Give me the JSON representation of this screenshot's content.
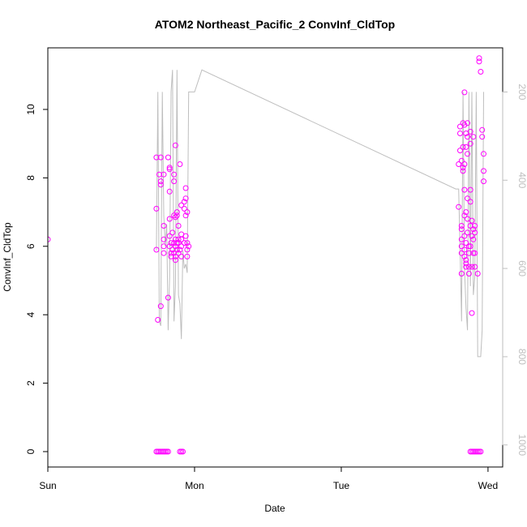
{
  "chart_data": {
    "type": "scatter",
    "title": "ATOM2 Northeast_Pacific_2 ConvInf_CldTop",
    "xlabel": "Date",
    "ylabel": "ConvInf_CldTop",
    "xlim": [
      0,
      3.1
    ],
    "ylim": [
      -0.45,
      11.8
    ],
    "x_ticks": [
      {
        "value": 0,
        "label": "Sun"
      },
      {
        "value": 1,
        "label": "Mon"
      },
      {
        "value": 2,
        "label": "Tue"
      },
      {
        "value": 3,
        "label": "Wed"
      }
    ],
    "y_ticks": [
      0,
      2,
      4,
      6,
      8,
      10
    ],
    "right_axis": {
      "range": [
        100,
        1050
      ],
      "ticks": [
        200,
        400,
        600,
        800,
        1000
      ],
      "color": "#bebebe"
    },
    "grid": false,
    "colors": {
      "points": "#ff00ff",
      "line": "#bebebe"
    },
    "series": [
      {
        "style": "points",
        "color": "#ff00ff",
        "points": [
          [
            0.0,
            6.2
          ],
          [
            0.74,
            8.6
          ],
          [
            0.74,
            7.1
          ],
          [
            0.74,
            5.9
          ],
          [
            0.75,
            3.85
          ],
          [
            0.76,
            8.1
          ],
          [
            0.77,
            8.6
          ],
          [
            0.77,
            7.8
          ],
          [
            0.77,
            7.9
          ],
          [
            0.77,
            4.25
          ],
          [
            0.79,
            6.6
          ],
          [
            0.79,
            6.2
          ],
          [
            0.79,
            5.8
          ],
          [
            0.79,
            6.0
          ],
          [
            0.79,
            8.1
          ],
          [
            0.82,
            4.5
          ],
          [
            0.82,
            8.6
          ],
          [
            0.83,
            8.25
          ],
          [
            0.83,
            8.3
          ],
          [
            0.83,
            7.6
          ],
          [
            0.83,
            6.8
          ],
          [
            0.83,
            6.3
          ],
          [
            0.83,
            6.0
          ],
          [
            0.84,
            5.8
          ],
          [
            0.84,
            5.7
          ],
          [
            0.84,
            6.1
          ],
          [
            0.85,
            5.9
          ],
          [
            0.85,
            6.4
          ],
          [
            0.86,
            6.1
          ],
          [
            0.86,
            5.8
          ],
          [
            0.86,
            6.9
          ],
          [
            0.86,
            7.9
          ],
          [
            0.86,
            8.1
          ],
          [
            0.87,
            6.85
          ],
          [
            0.87,
            6.0
          ],
          [
            0.87,
            6.2
          ],
          [
            0.87,
            5.7
          ],
          [
            0.87,
            5.6
          ],
          [
            0.87,
            8.95
          ],
          [
            0.88,
            7.0
          ],
          [
            0.88,
            6.1
          ],
          [
            0.88,
            5.9
          ],
          [
            0.88,
            6.9
          ],
          [
            0.89,
            6.6
          ],
          [
            0.89,
            5.8
          ],
          [
            0.89,
            6.2
          ],
          [
            0.89,
            6.1
          ],
          [
            0.9,
            5.9
          ],
          [
            0.9,
            8.4
          ],
          [
            0.91,
            7.2
          ],
          [
            0.91,
            6.2
          ],
          [
            0.91,
            6.0
          ],
          [
            0.91,
            6.35
          ],
          [
            0.91,
            5.7
          ],
          [
            0.93,
            7.3
          ],
          [
            0.93,
            6.1
          ],
          [
            0.93,
            7.1
          ],
          [
            0.94,
            7.7
          ],
          [
            0.94,
            6.9
          ],
          [
            0.94,
            7.4
          ],
          [
            0.94,
            6.3
          ],
          [
            0.95,
            5.9
          ],
          [
            0.95,
            5.7
          ],
          [
            0.95,
            7.0
          ],
          [
            0.95,
            6.1
          ],
          [
            0.96,
            6.0
          ],
          [
            0.74,
            0
          ],
          [
            0.75,
            0
          ],
          [
            0.76,
            0
          ],
          [
            0.77,
            0
          ],
          [
            0.78,
            0
          ],
          [
            0.79,
            0
          ],
          [
            0.8,
            0
          ],
          [
            0.81,
            0
          ],
          [
            0.82,
            0
          ],
          [
            0.9,
            0
          ],
          [
            0.91,
            0
          ],
          [
            0.92,
            0
          ],
          [
            2.8,
            7.15
          ],
          [
            2.8,
            8.4
          ],
          [
            2.81,
            8.8
          ],
          [
            2.81,
            9.5
          ],
          [
            2.81,
            9.3
          ],
          [
            2.82,
            5.2
          ],
          [
            2.82,
            5.8
          ],
          [
            2.82,
            6.0
          ],
          [
            2.82,
            6.6
          ],
          [
            2.82,
            6.5
          ],
          [
            2.82,
            6.2
          ],
          [
            2.82,
            8.5
          ],
          [
            2.83,
            8.2
          ],
          [
            2.83,
            8.3
          ],
          [
            2.83,
            8.9
          ],
          [
            2.83,
            9.6
          ],
          [
            2.84,
            10.5
          ],
          [
            2.84,
            9.55
          ],
          [
            2.84,
            8.4
          ],
          [
            2.84,
            7.65
          ],
          [
            2.84,
            6.9
          ],
          [
            2.84,
            6.3
          ],
          [
            2.84,
            5.9
          ],
          [
            2.84,
            5.7
          ],
          [
            2.85,
            5.5
          ],
          [
            2.85,
            5.4
          ],
          [
            2.85,
            5.6
          ],
          [
            2.85,
            6.1
          ],
          [
            2.85,
            7.0
          ],
          [
            2.85,
            8.9
          ],
          [
            2.85,
            9.3
          ],
          [
            2.86,
            9.6
          ],
          [
            2.86,
            9.2
          ],
          [
            2.86,
            8.7
          ],
          [
            2.86,
            7.4
          ],
          [
            2.86,
            6.8
          ],
          [
            2.86,
            6.4
          ],
          [
            2.87,
            6.0
          ],
          [
            2.87,
            5.8
          ],
          [
            2.87,
            5.4
          ],
          [
            2.87,
            5.2
          ],
          [
            2.88,
            6.0
          ],
          [
            2.88,
            6.6
          ],
          [
            2.88,
            7.3
          ],
          [
            2.88,
            7.65
          ],
          [
            2.88,
            9.0
          ],
          [
            2.88,
            9.35
          ],
          [
            2.89,
            4.05
          ],
          [
            2.89,
            5.4
          ],
          [
            2.89,
            6.3
          ],
          [
            2.89,
            6.75
          ],
          [
            2.9,
            5.8
          ],
          [
            2.9,
            6.2
          ],
          [
            2.9,
            6.5
          ],
          [
            2.9,
            9.2
          ],
          [
            2.91,
            6.4
          ],
          [
            2.91,
            6.6
          ],
          [
            2.91,
            5.4
          ],
          [
            2.91,
            5.8
          ],
          [
            2.93,
            5.2
          ],
          [
            2.94,
            11.5
          ],
          [
            2.94,
            11.4
          ],
          [
            2.95,
            11.1
          ],
          [
            2.96,
            9.4
          ],
          [
            2.96,
            9.2
          ],
          [
            2.97,
            8.7
          ],
          [
            2.97,
            8.2
          ],
          [
            2.97,
            7.9
          ],
          [
            2.88,
            0
          ],
          [
            2.89,
            0
          ],
          [
            2.9,
            0
          ],
          [
            2.91,
            0
          ],
          [
            2.92,
            0
          ],
          [
            2.93,
            0
          ],
          [
            2.94,
            0
          ],
          [
            2.95,
            0
          ]
        ]
      },
      {
        "style": "line",
        "axis": "right",
        "color": "#bebebe",
        "points": [
          [
            0.74,
            560
          ],
          [
            0.75,
            200
          ],
          [
            0.76,
            720
          ],
          [
            0.77,
            730
          ],
          [
            0.78,
            200
          ],
          [
            0.79,
            480
          ],
          [
            0.8,
            550
          ],
          [
            0.81,
            500
          ],
          [
            0.82,
            740
          ],
          [
            0.83,
            620
          ],
          [
            0.84,
            200
          ],
          [
            0.85,
            150
          ],
          [
            0.86,
            720
          ],
          [
            0.87,
            640
          ],
          [
            0.88,
            150
          ],
          [
            0.89,
            660
          ],
          [
            0.9,
            680
          ],
          [
            0.91,
            760
          ],
          [
            0.92,
            560
          ],
          [
            0.93,
            600
          ],
          [
            0.94,
            590
          ],
          [
            0.95,
            610
          ],
          [
            0.96,
            200
          ],
          [
            1.0,
            200
          ],
          [
            1.05,
            150
          ],
          [
            2.78,
            420
          ],
          [
            2.8,
            420
          ],
          [
            2.81,
            560
          ],
          [
            2.82,
            720
          ],
          [
            2.83,
            200
          ],
          [
            2.84,
            600
          ],
          [
            2.85,
            690
          ],
          [
            2.86,
            740
          ],
          [
            2.87,
            200
          ],
          [
            2.88,
            640
          ],
          [
            2.89,
            200
          ],
          [
            2.9,
            660
          ],
          [
            2.91,
            620
          ],
          [
            2.92,
            200
          ],
          [
            2.93,
            800
          ],
          [
            2.94,
            800
          ],
          [
            2.95,
            800
          ],
          [
            2.96,
            740
          ],
          [
            2.97,
            200
          ]
        ]
      }
    ]
  }
}
